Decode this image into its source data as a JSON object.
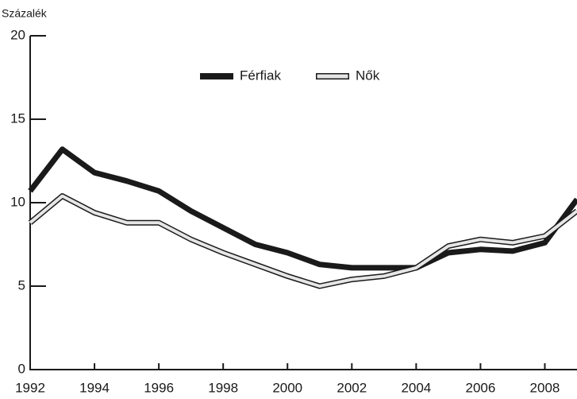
{
  "chart_data": {
    "type": "line",
    "y_label": "Százalék",
    "x": [
      1992,
      1993,
      1994,
      1995,
      1996,
      1997,
      1998,
      1999,
      2000,
      2001,
      2002,
      2003,
      2004,
      2005,
      2006,
      2007,
      2008,
      2009
    ],
    "xlim": [
      1992,
      2009
    ],
    "xticks": [
      1992,
      1994,
      1996,
      1998,
      2000,
      2002,
      2004,
      2006,
      2008
    ],
    "ylim": [
      0,
      20
    ],
    "yticks": [
      0,
      5,
      10,
      15,
      20
    ],
    "legend": "top",
    "series": [
      {
        "name": "Férfiak",
        "color": "#1a1a1a",
        "values": [
          10.7,
          13.2,
          11.8,
          11.3,
          10.7,
          9.5,
          8.5,
          7.5,
          7.0,
          6.3,
          6.1,
          6.1,
          6.1,
          7.0,
          7.2,
          7.1,
          7.6,
          10.2
        ]
      },
      {
        "name": "Nők",
        "color": "#e6e6e6",
        "values": [
          8.8,
          10.4,
          9.4,
          8.8,
          8.8,
          7.8,
          7.0,
          6.3,
          5.6,
          5.0,
          5.4,
          5.6,
          6.1,
          7.4,
          7.8,
          7.6,
          8.0,
          9.5
        ]
      }
    ]
  }
}
